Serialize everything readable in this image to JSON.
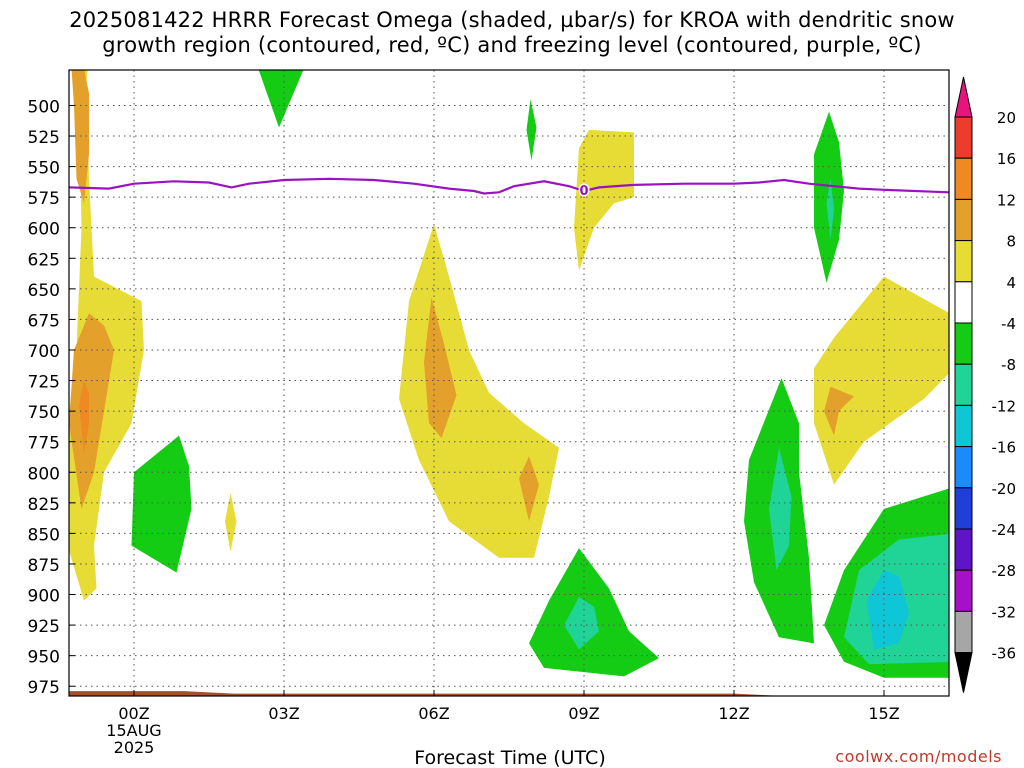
{
  "title_line1": "2025081422 HRRR Forecast Omega (shaded, µbar/s) for KROA with dendritic snow",
  "title_line2": "growth region (contoured, red, ºC) and freezing level (contoured, purple, ºC)",
  "watermark": "coolwx.com/models",
  "chart_data": {
    "type": "contour",
    "xlabel": "Forecast Time (UTC)",
    "ylabel": "",
    "xlim": [
      -1.3,
      16.3
    ],
    "ylim": [
      983,
      471
    ],
    "x_ticks": [
      {
        "x": 0,
        "lines": [
          "00Z",
          "15AUG",
          "2025"
        ]
      },
      {
        "x": 3,
        "lines": [
          "03Z"
        ]
      },
      {
        "x": 6,
        "lines": [
          "06Z"
        ]
      },
      {
        "x": 9,
        "lines": [
          "09Z"
        ]
      },
      {
        "x": 12,
        "lines": [
          "12Z"
        ]
      },
      {
        "x": 15,
        "lines": [
          "15Z"
        ]
      }
    ],
    "y_ticks": [
      500,
      525,
      550,
      575,
      600,
      625,
      650,
      675,
      700,
      725,
      750,
      775,
      800,
      825,
      850,
      875,
      900,
      925,
      950,
      975
    ],
    "grid": true,
    "colorbar": {
      "labels": [
        "20",
        "16",
        "12",
        "8",
        "4",
        "-4",
        "-8",
        "-12",
        "-16",
        "-20",
        "-24",
        "-28",
        "-32",
        "-36"
      ],
      "bands": [
        {
          "from": 20,
          "to": 24,
          "color": "#e8137d"
        },
        {
          "from": 16,
          "to": 20,
          "color": "#ec3c2e"
        },
        {
          "from": 12,
          "to": 16,
          "color": "#ef8a22"
        },
        {
          "from": 8,
          "to": 12,
          "color": "#e3a02a"
        },
        {
          "from": 4,
          "to": 8,
          "color": "#e7dc35"
        },
        {
          "from": -4,
          "to": 4,
          "color": "#ffffff"
        },
        {
          "from": -8,
          "to": -4,
          "color": "#13cc13"
        },
        {
          "from": -12,
          "to": -8,
          "color": "#1fd496"
        },
        {
          "from": -16,
          "to": -12,
          "color": "#0ec6d6"
        },
        {
          "from": -20,
          "to": -16,
          "color": "#1a8cff"
        },
        {
          "from": -24,
          "to": -20,
          "color": "#1f3fd8"
        },
        {
          "from": -28,
          "to": -24,
          "color": "#6014c8"
        },
        {
          "from": -32,
          "to": -28,
          "color": "#a70fc8"
        },
        {
          "from": -36,
          "to": -32,
          "color": "#a6a6a6"
        },
        {
          "from": -40,
          "to": -36,
          "color": "#000000"
        }
      ]
    },
    "freezing_level": {
      "label": "0",
      "label_at": [
        9.0,
        569
      ],
      "color": "#9914c0",
      "points": [
        [
          -1.3,
          567
        ],
        [
          -0.5,
          568
        ],
        [
          0,
          564
        ],
        [
          0.8,
          562
        ],
        [
          1.5,
          563
        ],
        [
          1.95,
          567
        ],
        [
          2.3,
          564
        ],
        [
          3,
          561
        ],
        [
          3.9,
          560
        ],
        [
          4.8,
          561
        ],
        [
          5.6,
          564
        ],
        [
          6.3,
          568
        ],
        [
          6.8,
          570
        ],
        [
          7,
          572
        ],
        [
          7.3,
          571
        ],
        [
          7.6,
          566
        ],
        [
          8.2,
          562
        ],
        [
          8.7,
          566
        ],
        [
          9,
          570
        ],
        [
          9.3,
          567
        ],
        [
          10,
          565
        ],
        [
          11,
          564
        ],
        [
          12,
          564
        ],
        [
          12.5,
          563
        ],
        [
          13,
          561
        ],
        [
          13.5,
          564
        ],
        [
          14,
          566
        ],
        [
          14.5,
          568
        ],
        [
          15,
          569
        ],
        [
          16.3,
          571
        ]
      ]
    },
    "ground": {
      "color": "#a0522d",
      "points": [
        [
          -1.3,
          979
        ],
        [
          1,
          979
        ],
        [
          2,
          981
        ],
        [
          12,
          981
        ],
        [
          13,
          983
        ],
        [
          16.3,
          983
        ]
      ]
    },
    "regions": [
      {
        "name": "positive-4-column-left",
        "level": 4,
        "color": "#e7dc35",
        "points": [
          [
            -1.6,
            440
          ],
          [
            -1.1,
            480
          ],
          [
            -1.05,
            600
          ],
          [
            -1.15,
            700
          ],
          [
            -1.35,
            770
          ],
          [
            -1.4,
            800
          ],
          [
            -1.4,
            850
          ],
          [
            -1.0,
            905
          ],
          [
            -0.75,
            895
          ],
          [
            -0.8,
            860
          ],
          [
            -0.6,
            800
          ],
          [
            -0.05,
            760
          ],
          [
            0.2,
            700
          ],
          [
            0.15,
            660
          ],
          [
            -0.8,
            640
          ],
          [
            -0.9,
            560
          ],
          [
            -0.95,
            480
          ],
          [
            -0.85,
            440
          ]
        ]
      },
      {
        "name": "positive-8-upper-left",
        "level": 8,
        "color": "#e3a02a",
        "points": [
          [
            -1.25,
            470
          ],
          [
            -1.2,
            500
          ],
          [
            -1.15,
            560
          ],
          [
            -1.0,
            580
          ],
          [
            -0.9,
            540
          ],
          [
            -0.9,
            490
          ],
          [
            -1.0,
            470
          ]
        ]
      },
      {
        "name": "positive-8-lower-left",
        "level": 8,
        "color": "#e3a02a",
        "points": [
          [
            -0.9,
            670
          ],
          [
            -1.2,
            700
          ],
          [
            -1.3,
            760
          ],
          [
            -1.05,
            830
          ],
          [
            -0.8,
            800
          ],
          [
            -0.6,
            750
          ],
          [
            -0.4,
            700
          ],
          [
            -0.6,
            680
          ]
        ]
      },
      {
        "name": "positive-12-left",
        "level": 12,
        "color": "#ef8a22",
        "points": [
          [
            -1.0,
            725
          ],
          [
            -1.1,
            745
          ],
          [
            -1.0,
            785
          ],
          [
            -0.9,
            760
          ],
          [
            -0.9,
            735
          ]
        ]
      },
      {
        "name": "positive-4-center",
        "level": 4,
        "color": "#e7dc35",
        "points": [
          [
            6.0,
            597
          ],
          [
            5.5,
            660
          ],
          [
            5.3,
            740
          ],
          [
            5.7,
            790
          ],
          [
            6.3,
            840
          ],
          [
            7.3,
            870
          ],
          [
            8.0,
            870
          ],
          [
            8.3,
            820
          ],
          [
            8.5,
            780
          ],
          [
            7.8,
            760
          ],
          [
            7.1,
            735
          ],
          [
            6.7,
            700
          ],
          [
            6.3,
            640
          ]
        ]
      },
      {
        "name": "positive-8-center",
        "level": 8,
        "color": "#e3a02a",
        "points": [
          [
            5.95,
            657
          ],
          [
            5.8,
            710
          ],
          [
            5.9,
            760
          ],
          [
            6.15,
            772
          ],
          [
            6.45,
            737
          ],
          [
            6.2,
            695
          ]
        ]
      },
      {
        "name": "positive-8-center-small",
        "level": 8,
        "color": "#e3a02a",
        "points": [
          [
            7.9,
            787
          ],
          [
            7.7,
            805
          ],
          [
            7.9,
            840
          ],
          [
            8.1,
            810
          ]
        ]
      },
      {
        "name": "positive-4-top-right",
        "level": 4,
        "color": "#e7dc35",
        "points": [
          [
            8.9,
            535
          ],
          [
            8.8,
            600
          ],
          [
            8.9,
            635
          ],
          [
            9.2,
            600
          ],
          [
            9.6,
            580
          ],
          [
            10.0,
            575
          ],
          [
            10.0,
            522
          ],
          [
            9.1,
            520
          ]
        ]
      },
      {
        "name": "positive-4-small-center",
        "level": 4,
        "color": "#e7dc35",
        "points": [
          [
            1.93,
            817
          ],
          [
            1.82,
            840
          ],
          [
            1.93,
            865
          ],
          [
            2.05,
            840
          ]
        ]
      },
      {
        "name": "positive-4-right",
        "level": 4,
        "color": "#e7dc35",
        "points": [
          [
            15.0,
            640
          ],
          [
            14.0,
            690
          ],
          [
            13.6,
            715
          ],
          [
            13.6,
            760
          ],
          [
            14.0,
            810
          ],
          [
            14.6,
            775
          ],
          [
            15.8,
            740
          ],
          [
            16.4,
            715
          ],
          [
            16.4,
            672
          ]
        ]
      },
      {
        "name": "positive-8-right",
        "level": 8,
        "color": "#e3a02a",
        "points": [
          [
            13.93,
            730
          ],
          [
            13.8,
            750
          ],
          [
            14.0,
            770
          ],
          [
            14.1,
            750
          ],
          [
            14.4,
            738
          ]
        ]
      },
      {
        "name": "negative-4-top",
        "level": -4,
        "color": "#13cc13",
        "points": [
          [
            2.4,
            460
          ],
          [
            2.9,
            518
          ],
          [
            3.5,
            460
          ]
        ]
      },
      {
        "name": "negative-4-small",
        "level": -4,
        "color": "#13cc13",
        "points": [
          [
            7.93,
            495
          ],
          [
            7.85,
            520
          ],
          [
            7.95,
            545
          ],
          [
            8.05,
            518
          ]
        ]
      },
      {
        "name": "negative-4-left-cell",
        "level": -4,
        "color": "#13cc13",
        "points": [
          [
            0.9,
            770
          ],
          [
            0.0,
            800
          ],
          [
            -0.05,
            860
          ],
          [
            0.85,
            882
          ],
          [
            1.15,
            830
          ],
          [
            1.1,
            795
          ]
        ]
      },
      {
        "name": "negative-4-bottom-center",
        "level": -4,
        "color": "#13cc13",
        "points": [
          [
            8.9,
            862
          ],
          [
            8.3,
            905
          ],
          [
            7.9,
            940
          ],
          [
            8.2,
            960
          ],
          [
            9.8,
            967
          ],
          [
            10.5,
            952
          ],
          [
            9.9,
            930
          ],
          [
            9.5,
            895
          ]
        ]
      },
      {
        "name": "negative-8-bottom-center",
        "level": -8,
        "color": "#1fd496",
        "points": [
          [
            8.9,
            902
          ],
          [
            8.6,
            925
          ],
          [
            8.9,
            945
          ],
          [
            9.3,
            930
          ],
          [
            9.2,
            910
          ]
        ]
      },
      {
        "name": "negative-4-upper-right",
        "level": -4,
        "color": "#13cc13",
        "points": [
          [
            13.9,
            505
          ],
          [
            13.6,
            540
          ],
          [
            13.6,
            600
          ],
          [
            13.85,
            645
          ],
          [
            14.1,
            610
          ],
          [
            14.2,
            570
          ],
          [
            14.1,
            530
          ]
        ]
      },
      {
        "name": "negative-8-upper-right",
        "level": -8,
        "color": "#1fd496",
        "points": [
          [
            13.93,
            560
          ],
          [
            13.85,
            580
          ],
          [
            13.93,
            610
          ],
          [
            14.0,
            585
          ]
        ]
      },
      {
        "name": "negative-4-right-column",
        "level": -4,
        "color": "#13cc13",
        "points": [
          [
            12.95,
            723
          ],
          [
            12.3,
            790
          ],
          [
            12.2,
            840
          ],
          [
            12.4,
            890
          ],
          [
            12.9,
            935
          ],
          [
            13.6,
            940
          ],
          [
            13.5,
            870
          ],
          [
            13.3,
            800
          ],
          [
            13.3,
            760
          ]
        ]
      },
      {
        "name": "negative-8-right-column",
        "level": -8,
        "color": "#1fd496",
        "points": [
          [
            12.9,
            780
          ],
          [
            12.7,
            830
          ],
          [
            12.85,
            880
          ],
          [
            13.1,
            860
          ],
          [
            13.15,
            820
          ]
        ]
      },
      {
        "name": "negative-4-bottom-right",
        "level": -4,
        "color": "#13cc13",
        "points": [
          [
            16.4,
            812
          ],
          [
            15.0,
            830
          ],
          [
            14.2,
            880
          ],
          [
            13.8,
            925
          ],
          [
            14.2,
            955
          ],
          [
            15.0,
            968
          ],
          [
            16.4,
            968
          ]
        ]
      },
      {
        "name": "negative-8-bottom-right",
        "level": -8,
        "color": "#1fd496",
        "points": [
          [
            16.4,
            850
          ],
          [
            15.3,
            855
          ],
          [
            14.5,
            880
          ],
          [
            14.2,
            935
          ],
          [
            14.7,
            957
          ],
          [
            16.4,
            955
          ]
        ]
      },
      {
        "name": "negative-12-bottom-right",
        "level": -12,
        "color": "#0ec6d6",
        "points": [
          [
            15.0,
            880
          ],
          [
            14.65,
            905
          ],
          [
            14.8,
            945
          ],
          [
            15.3,
            940
          ],
          [
            15.5,
            915
          ],
          [
            15.3,
            885
          ]
        ]
      }
    ]
  }
}
